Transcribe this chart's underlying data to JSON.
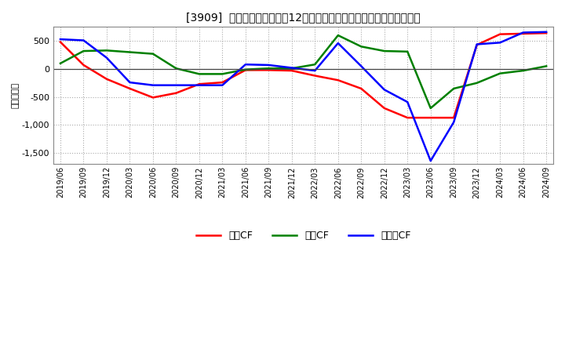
{
  "title": "[3909]  キャッシュフローの12か月移動合計の対前年同期増減額の推移",
  "ylabel": "（百万円）",
  "background_color": "#ffffff",
  "plot_bg_color": "#ffffff",
  "grid_color": "#aaaaaa",
  "xlabels": [
    "2019/06",
    "2019/09",
    "2019/12",
    "2020/03",
    "2020/06",
    "2020/09",
    "2020/12",
    "2021/03",
    "2021/06",
    "2021/09",
    "2021/12",
    "2022/03",
    "2022/06",
    "2022/09",
    "2022/12",
    "2023/03",
    "2023/06",
    "2023/09",
    "2023/12",
    "2024/03",
    "2024/06",
    "2024/09"
  ],
  "operating_cf": [
    480,
    70,
    -180,
    -350,
    -510,
    -430,
    -270,
    -240,
    -20,
    -20,
    -30,
    -120,
    -200,
    -350,
    -700,
    -870,
    -870,
    -870,
    430,
    620,
    630,
    640
  ],
  "investing_cf": [
    100,
    320,
    330,
    300,
    270,
    10,
    -90,
    -90,
    -10,
    10,
    10,
    80,
    600,
    400,
    320,
    310,
    -700,
    -350,
    -250,
    -80,
    -30,
    50
  ],
  "free_cf": [
    530,
    510,
    200,
    -240,
    -290,
    -290,
    -290,
    -290,
    80,
    70,
    20,
    -30,
    460,
    50,
    -370,
    -590,
    -1640,
    -950,
    440,
    470,
    650,
    660
  ],
  "ylim": [
    -1700,
    750
  ],
  "yticks": [
    500,
    0,
    -500,
    -1000,
    -1500
  ],
  "legend_labels": [
    "営業CF",
    "投資CF",
    "フリーCF"
  ],
  "line_colors": [
    "#ff0000",
    "#008000",
    "#0000ff"
  ],
  "line_width": 1.8
}
